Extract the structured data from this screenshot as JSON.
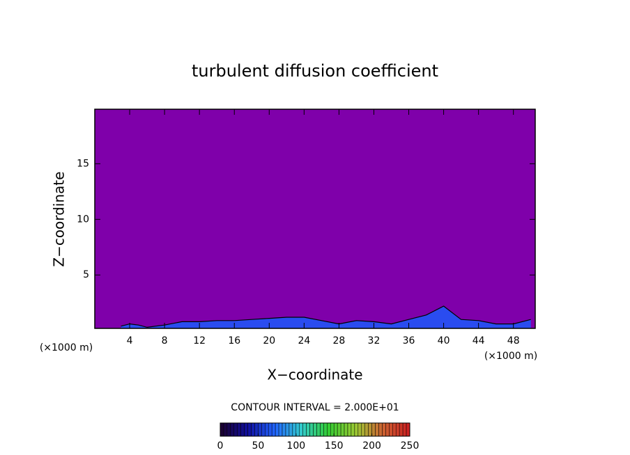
{
  "chart_data": {
    "type": "contour",
    "title": "turbulent diffusion coefficient",
    "xlabel": "X−coordinate",
    "ylabel": "Z−coordinate",
    "x_unit_label": "(×1000 m)",
    "xlim": [
      0,
      50.5
    ],
    "ylim": [
      0.2,
      19.9
    ],
    "xticks": [
      4,
      8,
      12,
      16,
      20,
      24,
      28,
      32,
      36,
      40,
      44,
      48
    ],
    "yticks": [
      5,
      10,
      15
    ],
    "background_color": "#7f00aa",
    "x": [
      3,
      4,
      5,
      6,
      8,
      10,
      12,
      14,
      16,
      18,
      20,
      22,
      24,
      26,
      28,
      30,
      32,
      34,
      36,
      38,
      40,
      42,
      44,
      46,
      48,
      50
    ],
    "values": [
      0.4,
      0.6,
      0.5,
      0.3,
      0.5,
      0.8,
      0.8,
      0.9,
      0.9,
      1.0,
      1.1,
      1.2,
      1.2,
      0.9,
      0.6,
      0.9,
      0.8,
      0.6,
      1.0,
      1.4,
      2.2,
      1.0,
      0.9,
      0.6,
      0.6,
      1.0
    ],
    "color": "#2a4cf0",
    "contour_interval_label": "CONTOUR INTERVAL = 2.000E+01",
    "colorbar": {
      "lim": [
        0,
        250
      ],
      "ticks": [
        0,
        50,
        100,
        150,
        200,
        250
      ],
      "colors": [
        "#1a0033",
        "#1010a0",
        "#2266ff",
        "#33cccc",
        "#33cc33",
        "#99cc33",
        "#cc6633",
        "#cc2222"
      ]
    }
  }
}
